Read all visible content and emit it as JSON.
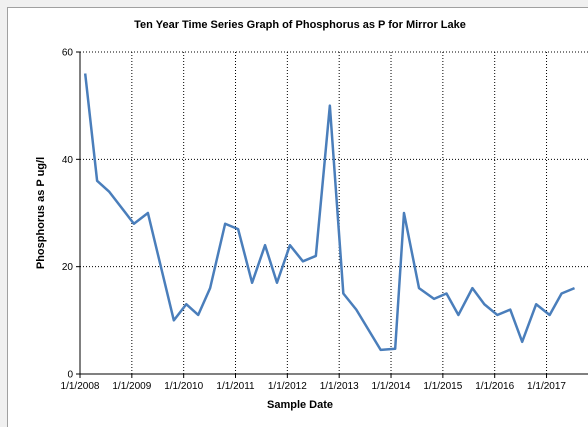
{
  "chart_data": {
    "type": "line",
    "title": "Ten Year Time Series Graph of Phosphorus as P for Mirror Lake",
    "x_label": "Sample Date",
    "y_label": "Phosphorus as P ug/l",
    "x": [
      2008.1,
      2008.33,
      2008.56,
      2009.04,
      2009.31,
      2009.81,
      2010.05,
      2010.28,
      2010.51,
      2010.8,
      2011.05,
      2011.32,
      2011.57,
      2011.8,
      2012.05,
      2012.3,
      2012.55,
      2012.82,
      2013.08,
      2013.33,
      2013.8,
      2014.08,
      2014.25,
      2014.54,
      2014.83,
      2015.07,
      2015.3,
      2015.57,
      2015.8,
      2016.05,
      2016.3,
      2016.53,
      2016.8,
      2017.06,
      2017.29,
      2017.54
    ],
    "series": [
      {
        "name": "Phosphorus as P",
        "color": "#4a7ebb",
        "values": [
          56,
          36,
          34,
          28,
          30,
          10,
          13,
          11,
          16,
          28,
          27,
          17,
          24,
          17,
          24,
          21,
          22,
          50,
          15,
          12,
          4.5,
          4.7,
          30,
          16,
          14,
          15,
          11,
          16,
          13,
          11,
          12,
          6,
          13,
          11,
          15,
          16
        ]
      }
    ],
    "xlim": [
      2008,
      2017.8
    ],
    "xticks": [
      {
        "value": 2008,
        "label": "1/1/2008"
      },
      {
        "value": 2009,
        "label": "1/1/2009"
      },
      {
        "value": 2010,
        "label": "1/1/2010"
      },
      {
        "value": 2011,
        "label": "1/1/2011"
      },
      {
        "value": 2012,
        "label": "1/1/2012"
      },
      {
        "value": 2013,
        "label": "1/1/2013"
      },
      {
        "value": 2014,
        "label": "1/1/2014"
      },
      {
        "value": 2015,
        "label": "1/1/2015"
      },
      {
        "value": 2016,
        "label": "1/1/2016"
      },
      {
        "value": 2017,
        "label": "1/1/2017"
      }
    ],
    "ylim": [
      0,
      60
    ],
    "yticks": [
      0,
      20,
      40,
      60
    ],
    "grid": true
  }
}
